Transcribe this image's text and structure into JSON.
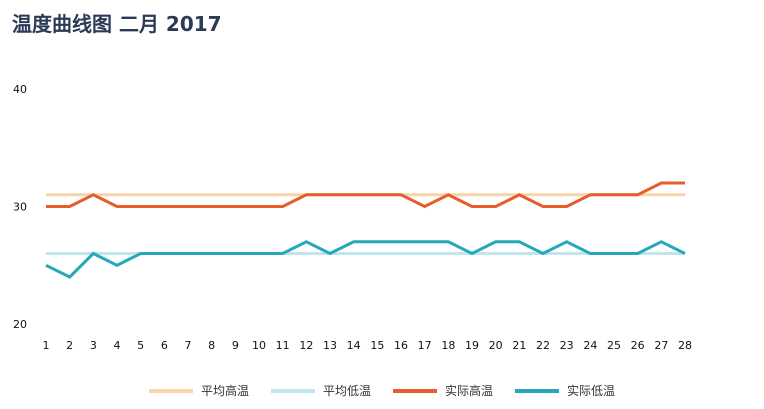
{
  "title": "温度曲线图 二月 2017",
  "chart_data": {
    "type": "line",
    "title": "温度曲线图 二月 2017",
    "xlabel": "",
    "ylabel": "",
    "x": [
      1,
      2,
      3,
      4,
      5,
      6,
      7,
      8,
      9,
      10,
      11,
      12,
      13,
      14,
      15,
      16,
      17,
      18,
      19,
      20,
      21,
      22,
      23,
      24,
      25,
      26,
      27,
      28
    ],
    "y_ticks": [
      20,
      30,
      40
    ],
    "ylim": [
      20,
      40
    ],
    "grid": false,
    "legend_position": "bottom",
    "series": [
      {
        "name": "平均高温",
        "color": "#f9d3aa",
        "values": [
          31,
          31,
          31,
          31,
          31,
          31,
          31,
          31,
          31,
          31,
          31,
          31,
          31,
          31,
          31,
          31,
          31,
          31,
          31,
          31,
          31,
          31,
          31,
          31,
          31,
          31,
          31,
          31
        ]
      },
      {
        "name": "平均低温",
        "color": "#bfe6ea",
        "values": [
          26,
          26,
          26,
          26,
          26,
          26,
          26,
          26,
          26,
          26,
          26,
          26,
          26,
          26,
          26,
          26,
          26,
          26,
          26,
          26,
          26,
          26,
          26,
          26,
          26,
          26,
          26,
          26
        ]
      },
      {
        "name": "实际高温",
        "color": "#e45d2b",
        "values": [
          30,
          30,
          31,
          30,
          30,
          30,
          30,
          30,
          30,
          30,
          30,
          31,
          31,
          31,
          31,
          31,
          30,
          31,
          30,
          30,
          31,
          30,
          30,
          31,
          31,
          31,
          32,
          32
        ]
      },
      {
        "name": "实际低温",
        "color": "#25a9ba",
        "values": [
          25,
          24,
          26,
          25,
          26,
          26,
          26,
          26,
          26,
          26,
          26,
          27,
          26,
          27,
          27,
          27,
          27,
          27,
          26,
          27,
          27,
          26,
          27,
          26,
          26,
          26,
          27,
          26
        ]
      }
    ]
  }
}
